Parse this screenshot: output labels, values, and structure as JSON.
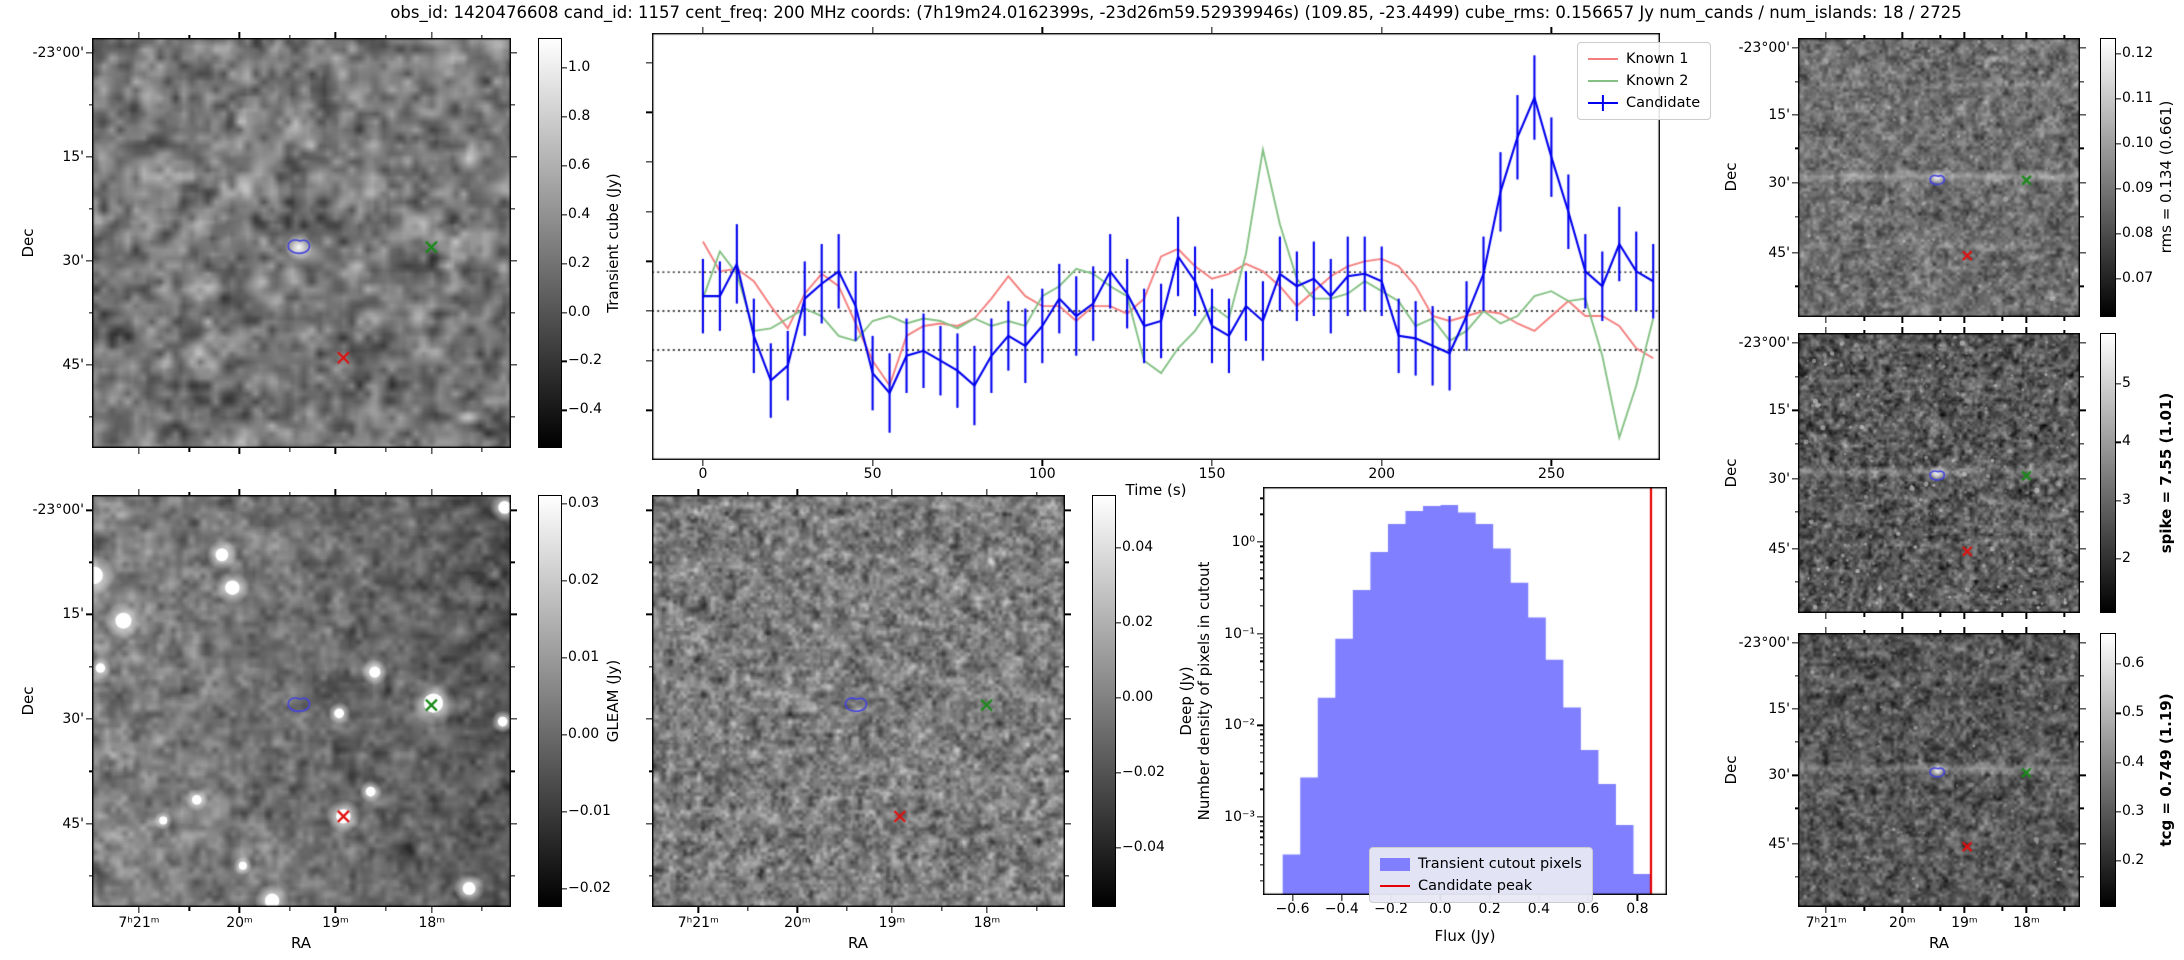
{
  "title": "obs_id: 1420476608 cand_id: 1157 cent_freq: 200 MHz coords: (7h19m24.0162399s, -23d26m59.52939946s) (109.85, -23.4499) cube_rms: 0.156657 Jy num_cands / num_islands: 18 / 2725",
  "colors": {
    "known1": "#f47f7f",
    "known2": "#85c185",
    "candidate": "#0000ee",
    "hist_fill": "#7f7fff",
    "peak_line": "#e80000",
    "contour": "#4444dd",
    "known_marker_green": "#1a8a1a",
    "known_marker_red": "#e01010"
  },
  "cutouts": {
    "dec_label": "Dec",
    "ra_label": "RA",
    "dec_ticks": [
      "-23°00'",
      "15'",
      "30'",
      "45'"
    ],
    "ra_ticks": [
      "7ʰ21ᵐ",
      "20ᵐ",
      "19ᵐ",
      "18ᵐ"
    ],
    "markers": {
      "contour": [
        0.494,
        0.51
      ],
      "green_x": [
        0.81,
        0.51
      ],
      "red_x": [
        0.6,
        0.78
      ]
    },
    "panels": [
      {
        "id": "transient",
        "colorbar_label": "Transient cube (Jy)",
        "colorbar_ticks": [
          "1.0",
          "0.8",
          "0.6",
          "0.4",
          "0.2",
          "0.0",
          "−0.2",
          "−0.4"
        ]
      },
      {
        "id": "gleam",
        "colorbar_label": "GLEAM (Jy)",
        "colorbar_ticks": [
          "0.03",
          "0.02",
          "0.01",
          "0.00",
          "−0.01",
          "−0.02"
        ]
      },
      {
        "id": "deep",
        "colorbar_label": "Deep (Jy)",
        "colorbar_ticks": [
          "0.04",
          "0.02",
          "0.00",
          "−0.02",
          "−0.04"
        ]
      },
      {
        "id": "rms",
        "colorbar_label": "rms = 0.134 (0.661)",
        "colorbar_ticks": [
          "0.12",
          "0.11",
          "0.10",
          "0.09",
          "0.08",
          "0.07"
        ]
      },
      {
        "id": "spike",
        "colorbar_label": "spike = 7.55 (1.01)",
        "colorbar_ticks": [
          "5",
          "4",
          "3",
          "2"
        ]
      },
      {
        "id": "tcg",
        "colorbar_label": "tcg = 0.749 (1.19)",
        "colorbar_ticks": [
          "0.6",
          "0.5",
          "0.4",
          "0.3",
          "0.2"
        ]
      }
    ]
  },
  "chart_data": [
    {
      "id": "lightcurve",
      "type": "line",
      "xlabel": "Time (s)",
      "ylabel": "",
      "x_range": [
        -15,
        282
      ],
      "y_range": [
        -0.6,
        1.12
      ],
      "xticks": [
        0,
        50,
        100,
        150,
        200,
        250
      ],
      "ytick_values_unlabeled": [
        1.0,
        0.8,
        0.6,
        0.4,
        0.2,
        0.0,
        -0.2,
        -0.4
      ],
      "hlines": [
        0.156657,
        0.0,
        -0.156657
      ],
      "legend_position": "upper right",
      "x": [
        0,
        5,
        10,
        15,
        20,
        25,
        30,
        35,
        40,
        45,
        50,
        55,
        60,
        65,
        70,
        75,
        80,
        85,
        90,
        95,
        100,
        105,
        110,
        115,
        120,
        125,
        130,
        135,
        140,
        145,
        150,
        155,
        160,
        165,
        170,
        175,
        180,
        185,
        190,
        195,
        200,
        205,
        210,
        215,
        220,
        225,
        230,
        235,
        240,
        245,
        250,
        255,
        260,
        265,
        270,
        275,
        280
      ],
      "series": [
        {
          "name": "Known 1",
          "color": "#f47f7f",
          "values": [
            0.28,
            0.16,
            0.17,
            0.12,
            0.02,
            -0.07,
            0.07,
            0.15,
            0.1,
            -0.05,
            -0.2,
            -0.3,
            -0.1,
            -0.06,
            -0.05,
            -0.06,
            -0.03,
            0.05,
            0.14,
            0.06,
            0.02,
            0.02,
            -0.04,
            0.02,
            0.02,
            -0.01,
            0.05,
            0.22,
            0.25,
            0.18,
            0.13,
            0.15,
            0.19,
            0.16,
            0.1,
            0.02,
            0.08,
            0.14,
            0.18,
            0.2,
            0.21,
            0.18,
            0.1,
            -0.02,
            -0.04,
            -0.02,
            0.0,
            -0.01,
            -0.05,
            -0.08,
            -0.02,
            0.04,
            -0.02,
            -0.02,
            -0.06,
            -0.15,
            -0.19
          ]
        },
        {
          "name": "Known 2",
          "color": "#85c185",
          "values": [
            0.05,
            0.24,
            0.15,
            -0.08,
            -0.07,
            -0.03,
            0.01,
            -0.02,
            -0.1,
            -0.12,
            -0.04,
            -0.02,
            -0.05,
            -0.03,
            -0.04,
            -0.07,
            -0.03,
            -0.06,
            -0.04,
            -0.06,
            0.06,
            0.1,
            0.17,
            0.15,
            0.1,
            0.06,
            -0.2,
            -0.25,
            -0.15,
            -0.08,
            0.02,
            -0.03,
            0.23,
            0.65,
            0.35,
            0.13,
            0.05,
            0.05,
            0.07,
            0.12,
            0.08,
            0.04,
            -0.06,
            -0.03,
            -0.12,
            -0.08,
            0.0,
            -0.05,
            -0.02,
            0.06,
            0.08,
            0.04,
            0.05,
            -0.18,
            -0.51,
            -0.3,
            -0.03
          ]
        },
        {
          "name": "Candidate",
          "color": "#0000ee",
          "values": [
            0.06,
            0.06,
            0.19,
            -0.1,
            -0.28,
            -0.22,
            0.05,
            0.11,
            0.16,
            0.02,
            -0.25,
            -0.33,
            -0.18,
            -0.16,
            -0.2,
            -0.24,
            -0.3,
            -0.18,
            -0.1,
            -0.14,
            -0.06,
            0.05,
            -0.02,
            0.03,
            0.16,
            0.07,
            -0.06,
            -0.04,
            0.22,
            0.12,
            -0.06,
            -0.1,
            0.02,
            -0.04,
            0.15,
            0.1,
            0.13,
            0.06,
            0.14,
            0.15,
            0.12,
            -0.1,
            -0.11,
            -0.14,
            -0.17,
            -0.02,
            0.15,
            0.48,
            0.7,
            0.86,
            0.62,
            0.4,
            0.16,
            0.1,
            0.27,
            0.16,
            0.12
          ],
          "errors": [
            0.15,
            0.14,
            0.16,
            0.15,
            0.15,
            0.14,
            0.15,
            0.16,
            0.15,
            0.14,
            0.15,
            0.16,
            0.15,
            0.15,
            0.14,
            0.15,
            0.16,
            0.15,
            0.14,
            0.15,
            0.15,
            0.14,
            0.16,
            0.15,
            0.15,
            0.14,
            0.15,
            0.15,
            0.16,
            0.14,
            0.15,
            0.15,
            0.14,
            0.16,
            0.15,
            0.14,
            0.15,
            0.15,
            0.16,
            0.15,
            0.14,
            0.15,
            0.15,
            0.16,
            0.15,
            0.14,
            0.15,
            0.16,
            0.17,
            0.17,
            0.16,
            0.15,
            0.15,
            0.14,
            0.15,
            0.16,
            0.15
          ]
        }
      ]
    },
    {
      "id": "flux_histogram",
      "type": "histogram",
      "xlabel": "Flux (Jy)",
      "ylabel": "Number density of pixels in cutout",
      "x_range": [
        -0.72,
        0.92
      ],
      "y_log_range": [
        -3.85,
        0.6
      ],
      "xticks": [
        "−0.6",
        "−0.4",
        "−0.2",
        "0.0",
        "0.2",
        "0.4",
        "0.6",
        "0.8"
      ],
      "xtick_values": [
        -0.6,
        -0.4,
        -0.2,
        0.0,
        0.2,
        0.4,
        0.6,
        0.8
      ],
      "ytick_labels": [
        "10⁰",
        "10⁻¹",
        "10⁻²",
        "10⁻³"
      ],
      "ytick_exponents": [
        0,
        -1,
        -2,
        -3
      ],
      "bin_start": -0.64,
      "bin_width": 0.0712,
      "densities": [
        0.00039,
        0.0027,
        0.02,
        0.088,
        0.3,
        0.78,
        1.57,
        2.18,
        2.47,
        2.53,
        2.1,
        1.57,
        0.85,
        0.36,
        0.15,
        0.052,
        0.0157,
        0.0054,
        0.0023,
        0.00082,
        0.00024
      ],
      "candidate_peak": 0.855,
      "legend": [
        {
          "label": "Transient cutout pixels",
          "color": "#7f7fff"
        },
        {
          "label": "Candidate peak",
          "color": "#e80000"
        }
      ]
    }
  ]
}
